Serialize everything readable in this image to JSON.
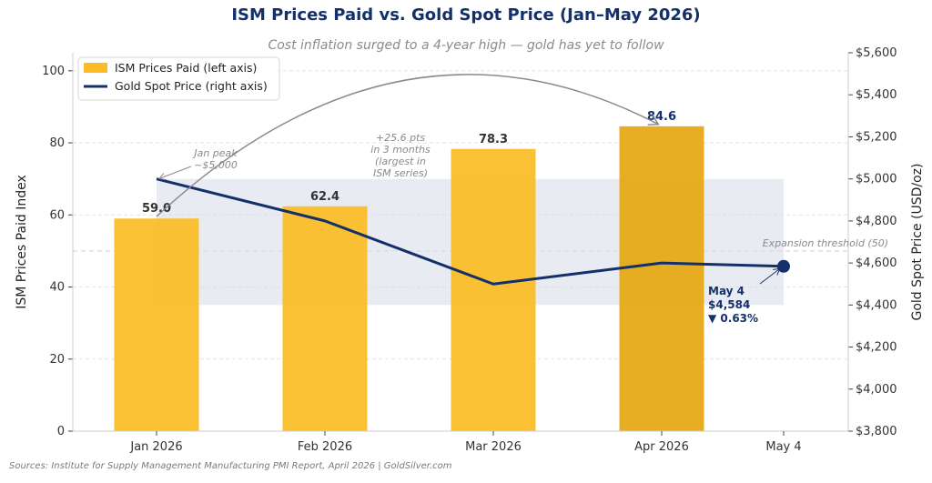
{
  "title": "ISM Prices Paid vs. Gold Spot Price (Jan–May 2026)",
  "subtitle": "Cost inflation surged to a 4-year high — gold has yet to follow",
  "source": "Sources: Institute for Supply Management Manufacturing PMI Report, April 2026  |  GoldSilver.com",
  "colors": {
    "bar": "#fbbc26",
    "bar_highlight": "#e5a712",
    "line": "#14306b",
    "band": "#d9e0ea",
    "annotation": "#8a8a8a"
  },
  "chart_data": {
    "type": "bar",
    "categories": [
      "Jan 2026",
      "Feb 2026",
      "Mar 2026",
      "Apr 2026",
      "May 4"
    ],
    "grid": true,
    "legend_position": "top-left",
    "series": [
      {
        "name": "ISM Prices Paid (left axis)",
        "type": "bar",
        "axis": "left",
        "values": [
          59.0,
          62.4,
          78.3,
          84.6,
          null
        ],
        "labels": [
          "59.0",
          "62.4",
          "78.3",
          "84.6",
          ""
        ]
      },
      {
        "name": "Gold Spot Price (right axis)",
        "type": "line",
        "axis": "right",
        "values": [
          5000,
          4800,
          4500,
          4600,
          4584
        ]
      }
    ],
    "left_axis": {
      "label": "ISM Prices Paid Index",
      "ylim": [
        0,
        105
      ],
      "ticks": [
        "0",
        "20",
        "40",
        "60",
        "80",
        "100"
      ]
    },
    "right_axis": {
      "label": "Gold Spot Price (USD/oz)",
      "ylim": [
        3800,
        5600
      ],
      "ticks": [
        "$3,800",
        "$4,000",
        "$4,200",
        "$4,400",
        "$4,600",
        "$4,800",
        "$5,000",
        "$5,200",
        "$5,400",
        "$5,600"
      ]
    },
    "threshold": {
      "value": 50,
      "label": "Expansion threshold (50)"
    },
    "shaded_range_right": [
      4400,
      5000
    ],
    "annotations": {
      "jan_peak": [
        "Jan peak",
        "~$5,000"
      ],
      "surge": [
        "+25.6 pts",
        "in 3 months",
        "(largest in",
        "ISM series)"
      ],
      "may": [
        "May 4",
        "$4,584",
        "▼ 0.63%"
      ]
    }
  }
}
